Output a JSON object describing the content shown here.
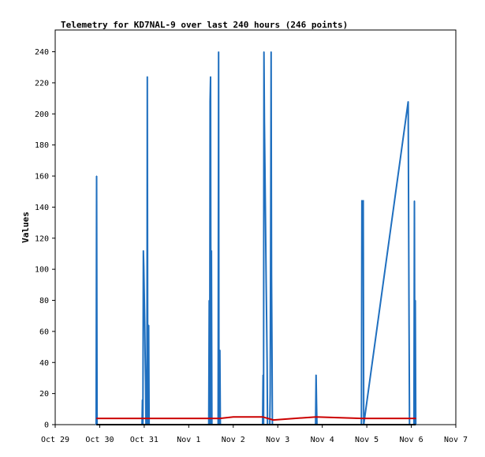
{
  "chart_data": {
    "type": "line",
    "title": "Telemetry for KD7NAL-9 over last 240 hours (246 points)",
    "xlabel": "",
    "ylabel": "Values",
    "ylim": [
      0,
      254
    ],
    "y_ticks": [
      0,
      20,
      40,
      60,
      80,
      100,
      120,
      140,
      160,
      180,
      200,
      220,
      240
    ],
    "x_ticks": [
      "Oct 29",
      "Oct 30",
      "Oct 31",
      "Nov 1",
      "Nov 2",
      "Nov 3",
      "Nov 4",
      "Nov 5",
      "Nov 6",
      "Nov 7"
    ],
    "x_unit": "days since Oct 29 00:00",
    "xlim": [
      0,
      9
    ],
    "grid": false,
    "legend": "none",
    "series": [
      {
        "color": "#1f6fbf",
        "points": [
          [
            0.92,
            0
          ],
          [
            0.93,
            160
          ],
          [
            0.94,
            0
          ],
          [
            1.95,
            0
          ],
          [
            1.96,
            16
          ],
          [
            1.97,
            0
          ],
          [
            1.98,
            112
          ],
          [
            1.99,
            102
          ],
          [
            2.0,
            84
          ],
          [
            2.01,
            66
          ],
          [
            2.02,
            46
          ],
          [
            2.03,
            28
          ],
          [
            2.04,
            0
          ],
          [
            2.06,
            0
          ],
          [
            2.07,
            224
          ],
          [
            2.08,
            0
          ],
          [
            2.1,
            64
          ],
          [
            2.11,
            0
          ],
          [
            3.45,
            0
          ],
          [
            3.46,
            80
          ],
          [
            3.47,
            0
          ],
          [
            3.48,
            208
          ],
          [
            3.49,
            224
          ],
          [
            3.5,
            0
          ],
          [
            3.51,
            112
          ],
          [
            3.52,
            0
          ],
          [
            3.66,
            0
          ],
          [
            3.67,
            240
          ],
          [
            3.68,
            0
          ],
          [
            3.7,
            48
          ],
          [
            3.71,
            0
          ],
          [
            4.66,
            0
          ],
          [
            4.67,
            32
          ],
          [
            4.68,
            0
          ],
          [
            4.69,
            240
          ],
          [
            4.7,
            195
          ],
          [
            4.71,
            168
          ],
          [
            4.72,
            144
          ],
          [
            4.73,
            116
          ],
          [
            4.74,
            92
          ],
          [
            4.75,
            68
          ],
          [
            4.76,
            40
          ],
          [
            4.77,
            0
          ],
          [
            4.82,
            0
          ],
          [
            4.83,
            20
          ],
          [
            4.84,
            120
          ],
          [
            4.85,
            240
          ],
          [
            4.86,
            96
          ],
          [
            4.87,
            48
          ],
          [
            4.88,
            0
          ],
          [
            5.85,
            0
          ],
          [
            5.86,
            32
          ],
          [
            5.87,
            16
          ],
          [
            5.88,
            0
          ],
          [
            6.88,
            0
          ],
          [
            6.89,
            144
          ],
          [
            6.92,
            144
          ],
          [
            6.93,
            0
          ],
          [
            7.93,
            208
          ],
          [
            7.94,
            128
          ],
          [
            7.95,
            64
          ],
          [
            7.96,
            0
          ],
          [
            8.06,
            0
          ],
          [
            8.07,
            144
          ],
          [
            8.08,
            0
          ],
          [
            8.09,
            80
          ],
          [
            8.1,
            0
          ]
        ]
      },
      {
        "color": "#cc0000",
        "points": [
          [
            0.93,
            4
          ],
          [
            1.95,
            4
          ],
          [
            2.1,
            4
          ],
          [
            3.45,
            4
          ],
          [
            3.7,
            4
          ],
          [
            4.0,
            5
          ],
          [
            4.66,
            5
          ],
          [
            4.9,
            3
          ],
          [
            5.86,
            5
          ],
          [
            6.89,
            4
          ],
          [
            7.93,
            4
          ],
          [
            8.1,
            4
          ]
        ]
      },
      {
        "color": "#000000",
        "points": [
          [
            0.93,
            0
          ],
          [
            8.1,
            0
          ]
        ]
      }
    ]
  }
}
